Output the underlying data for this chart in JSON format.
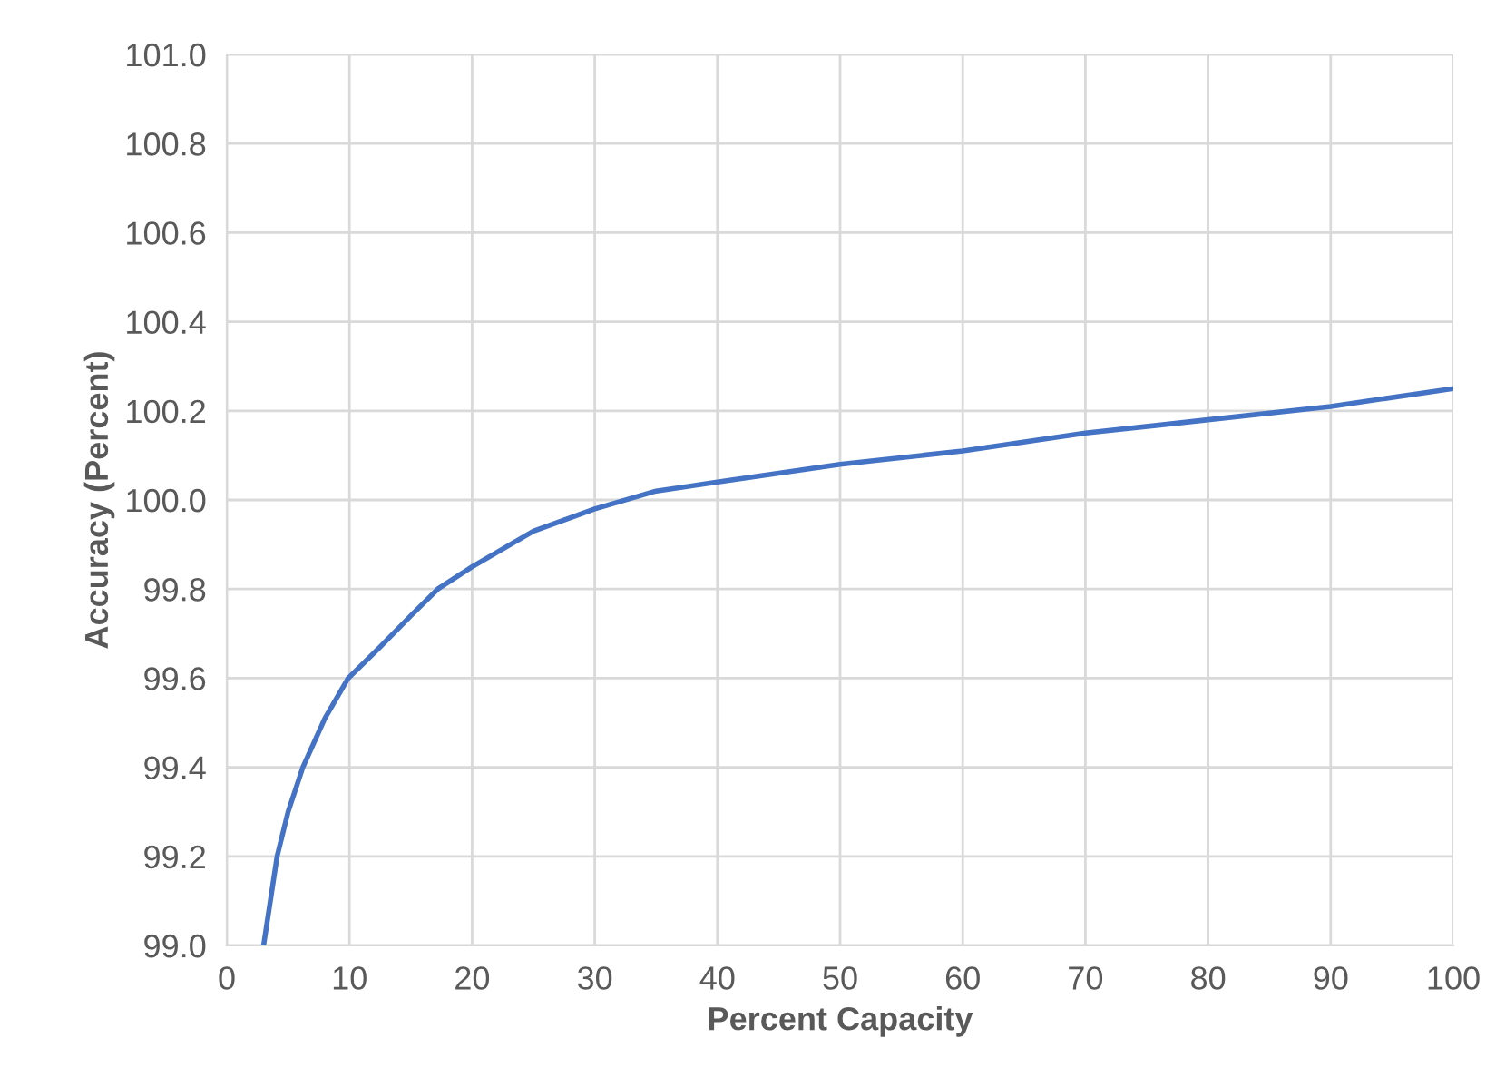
{
  "chart_data": {
    "type": "line",
    "xlabel": "Percent Capacity",
    "ylabel": "Accuracy (Percent)",
    "series": [
      {
        "color": "#4472c4",
        "x": [
          3.0,
          4.1,
          5,
          6.2,
          8,
          9.9,
          12.5,
          15,
          17.2,
          20,
          25,
          30,
          35,
          40,
          50,
          60,
          70,
          80,
          90,
          100
        ],
        "values": [
          99.0,
          99.2,
          99.3,
          99.4,
          99.51,
          99.6,
          99.67,
          99.74,
          99.8,
          99.85,
          99.93,
          99.98,
          100.02,
          100.04,
          100.08,
          100.11,
          100.15,
          100.18,
          100.21,
          100.25
        ]
      }
    ],
    "xlim": [
      0,
      100
    ],
    "xticks": [
      0,
      10,
      20,
      30,
      40,
      50,
      60,
      70,
      80,
      90,
      100
    ],
    "ylim": [
      99.0,
      101.0
    ],
    "yticks": [
      {
        "value": 99.0,
        "label": "99.0"
      },
      {
        "value": 99.2,
        "label": "99.2"
      },
      {
        "value": 99.4,
        "label": "99.4"
      },
      {
        "value": 99.6,
        "label": "99.6"
      },
      {
        "value": 99.8,
        "label": "99.8"
      },
      {
        "value": 100.0,
        "label": "100.0"
      },
      {
        "value": 100.2,
        "label": "100.2"
      },
      {
        "value": 100.4,
        "label": "100.4"
      },
      {
        "value": 100.6,
        "label": "100.6"
      },
      {
        "value": 100.8,
        "label": "100.8"
      },
      {
        "value": 101.0,
        "label": "101.0"
      }
    ],
    "grid": true,
    "marker": "none",
    "line_style": "solid"
  }
}
